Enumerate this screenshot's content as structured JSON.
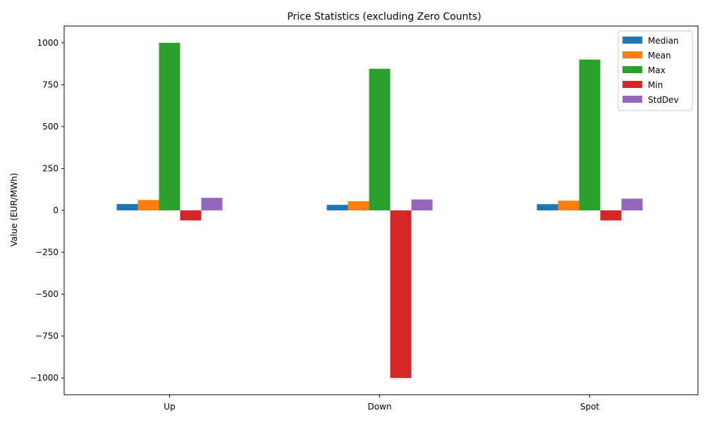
{
  "chart_data": {
    "type": "bar",
    "title": "Price Statistics (excluding Zero Counts)",
    "xlabel": "",
    "ylabel": "Value (EUR/MWh)",
    "categories": [
      "Up",
      "Down",
      "Spot"
    ],
    "series": [
      {
        "name": "Median",
        "color": "#1f77b4",
        "values": [
          38,
          33,
          37
        ]
      },
      {
        "name": "Mean",
        "color": "#ff7f0e",
        "values": [
          62,
          55,
          58
        ]
      },
      {
        "name": "Max",
        "color": "#2ca02c",
        "values": [
          1000,
          845,
          900
        ]
      },
      {
        "name": "Min",
        "color": "#d62728",
        "values": [
          -60,
          -1000,
          -60
        ]
      },
      {
        "name": "StdDev",
        "color": "#9467bd",
        "values": [
          75,
          65,
          70
        ]
      }
    ],
    "ylim": [
      -1100,
      1100
    ],
    "yticks": [
      -1000,
      -750,
      -500,
      -250,
      0,
      250,
      500,
      750,
      1000
    ],
    "ytick_labels": [
      "−1000",
      "−750",
      "−500",
      "−250",
      "0",
      "250",
      "500",
      "750",
      "1000"
    ],
    "grid": false,
    "legend_position": "top-right"
  }
}
